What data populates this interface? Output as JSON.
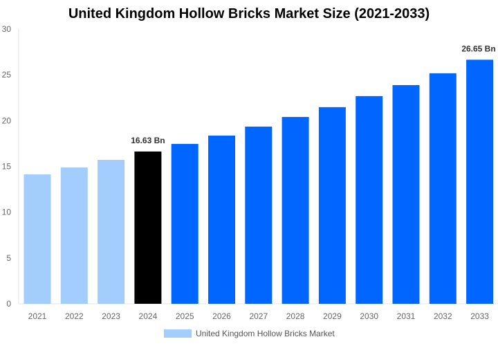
{
  "chart_data": {
    "type": "bar",
    "title": "United Kingdom Hollow Bricks Market Size (2021-2033)",
    "categories": [
      "2021",
      "2022",
      "2023",
      "2024",
      "2025",
      "2026",
      "2027",
      "2028",
      "2029",
      "2030",
      "2031",
      "2032",
      "2033"
    ],
    "series": [
      {
        "name": "United Kingdom Hollow Bricks Market",
        "values": [
          14.13,
          14.89,
          15.72,
          16.63,
          17.46,
          18.37,
          19.35,
          20.4,
          21.47,
          22.68,
          23.88,
          25.17,
          26.65
        ]
      }
    ],
    "data_labels": {
      "3": "16.63 Bn",
      "12": "26.65 Bn"
    },
    "ylim": [
      0,
      30
    ],
    "yticks": [
      0,
      5,
      10,
      15,
      20,
      25,
      30
    ],
    "grid": false,
    "legend_position": "bottom",
    "colors": {
      "historical": "#a3cdfd",
      "current": "#000000",
      "forecast": "#0066ff"
    },
    "color_groups": [
      "historical",
      "historical",
      "historical",
      "current",
      "forecast",
      "forecast",
      "forecast",
      "forecast",
      "forecast",
      "forecast",
      "forecast",
      "forecast",
      "forecast"
    ]
  }
}
